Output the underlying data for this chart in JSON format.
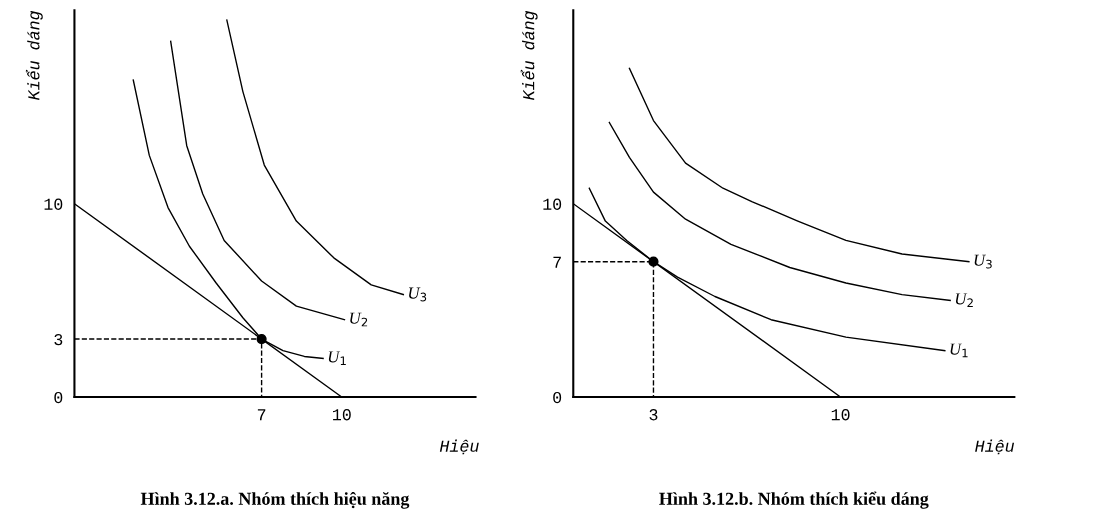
{
  "chart_data": [
    {
      "type": "line",
      "title": "Hình 3.12.a. Nhóm thích hiệu năng",
      "xlabel": "Hiệu",
      "ylabel": "Kiểu dáng",
      "xlim": [
        0,
        15
      ],
      "ylim": [
        0,
        20
      ],
      "xticks": [
        7,
        10
      ],
      "yticks": [
        0,
        3,
        10
      ],
      "grid": false,
      "legend": false,
      "series": [
        {
          "name": "U$_{1}$",
          "type": "line",
          "color": "#000000",
          "x": [
            2.2,
            2.8,
            3.5,
            4.3,
            5.3,
            6.3,
            7,
            7.8,
            8.6,
            9.3
          ],
          "values": [
            16.4,
            12.5,
            9.8,
            7.8,
            5.9,
            4.1,
            3,
            2.4,
            2.1,
            2.0
          ]
        },
        {
          "name": "U$_{2}$",
          "type": "line",
          "color": "#000000",
          "x": [
            3.6,
            4.2,
            4.8,
            5.6,
            7.0,
            8.3,
            10.1
          ],
          "values": [
            18.4,
            13.0,
            10.5,
            8.1,
            6.0,
            4.7,
            4.0
          ]
        },
        {
          "name": "U$_{3}$",
          "type": "line",
          "color": "#000000",
          "x": [
            5.7,
            6.3,
            7.1,
            8.3,
            9.7,
            11.1,
            12.3
          ],
          "values": [
            19.5,
            15.8,
            12.0,
            9.1,
            7.2,
            5.8,
            5.3
          ]
        },
        {
          "type": "line",
          "color": "#000000",
          "x": [
            0,
            10
          ],
          "values": [
            10,
            0
          ]
        },
        {
          "type": "line",
          "line_style": "dashed",
          "color": "#000000",
          "x": [
            0,
            7,
            7
          ],
          "values": [
            3,
            3,
            0
          ]
        },
        {
          "type": "scatter",
          "marker": "circle",
          "color": "#000000",
          "x": [
            7
          ],
          "values": [
            3
          ]
        }
      ]
    },
    {
      "type": "line",
      "title": "Hình 3.12.b. Nhóm thích kiểu dáng",
      "xlabel": "Hiệu",
      "ylabel": "Kiểu dáng",
      "xlim": [
        0,
        16.5
      ],
      "ylim": [
        0,
        20
      ],
      "xticks": [
        3,
        10
      ],
      "yticks": [
        0,
        7,
        10
      ],
      "grid": false,
      "legend": false,
      "series": [
        {
          "name": "U$_{1}$",
          "type": "line",
          "color": "#000000",
          "x": [
            0.6,
            1.2,
            2.0,
            3,
            3.9,
            5.3,
            7.4,
            10.2,
            13.9
          ],
          "values": [
            10.8,
            9.1,
            8.1,
            7,
            6.2,
            5.2,
            4.0,
            3.1,
            2.4
          ]
        },
        {
          "name": "U$_{2}$",
          "type": "line",
          "color": "#000000",
          "x": [
            1.35,
            2.1,
            3.0,
            4.2,
            5.9,
            8.1,
            10.2,
            12.3,
            14.1
          ],
          "values": [
            14.2,
            12.4,
            10.6,
            9.2,
            7.9,
            6.7,
            5.9,
            5.3,
            5.0
          ]
        },
        {
          "name": "U$_{3}$",
          "type": "line",
          "color": "#000000",
          "x": [
            2.1,
            3.0,
            4.2,
            5.6,
            6.7,
            8.4,
            10.2,
            12.3,
            14.8
          ],
          "values": [
            17.0,
            14.3,
            12.1,
            10.8,
            10.1,
            9.1,
            8.1,
            7.4,
            7.0
          ]
        },
        {
          "type": "line",
          "color": "#000000",
          "x": [
            0,
            10
          ],
          "values": [
            10,
            0
          ]
        },
        {
          "type": "line",
          "line_style": "dashed",
          "color": "#000000",
          "x": [
            0,
            3,
            3
          ],
          "values": [
            7,
            7,
            0
          ]
        },
        {
          "type": "scatter",
          "marker": "circle",
          "color": "#000000",
          "x": [
            3
          ],
          "values": [
            7
          ]
        }
      ]
    }
  ]
}
